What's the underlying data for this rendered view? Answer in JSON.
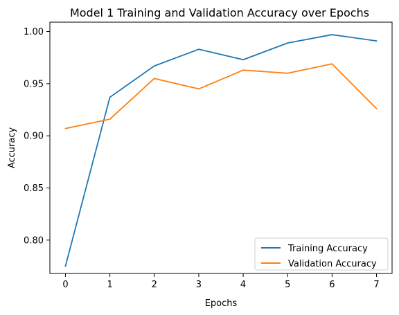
{
  "chart_data": {
    "type": "line",
    "title": "Model 1 Training and Validation Accuracy over Epochs",
    "xlabel": "Epochs",
    "ylabel": "Accuracy",
    "x": [
      0,
      1,
      2,
      3,
      4,
      5,
      6,
      7
    ],
    "xlim": [
      -0.35,
      7.35
    ],
    "ylim": [
      0.768,
      1.009
    ],
    "xticks": [
      "0",
      "1",
      "2",
      "3",
      "4",
      "5",
      "6",
      "7"
    ],
    "yticks": [
      "0.80",
      "0.85",
      "0.90",
      "0.95",
      "1.00"
    ],
    "grid": false,
    "legend_position": "lower right",
    "series": [
      {
        "name": "Training Accuracy",
        "color": "#1f77b4",
        "values": [
          0.775,
          0.937,
          0.967,
          0.983,
          0.973,
          0.989,
          0.997,
          0.991
        ]
      },
      {
        "name": "Validation Accuracy",
        "color": "#ff7f0e",
        "values": [
          0.907,
          0.916,
          0.955,
          0.945,
          0.963,
          0.96,
          0.969,
          0.926
        ]
      }
    ]
  }
}
